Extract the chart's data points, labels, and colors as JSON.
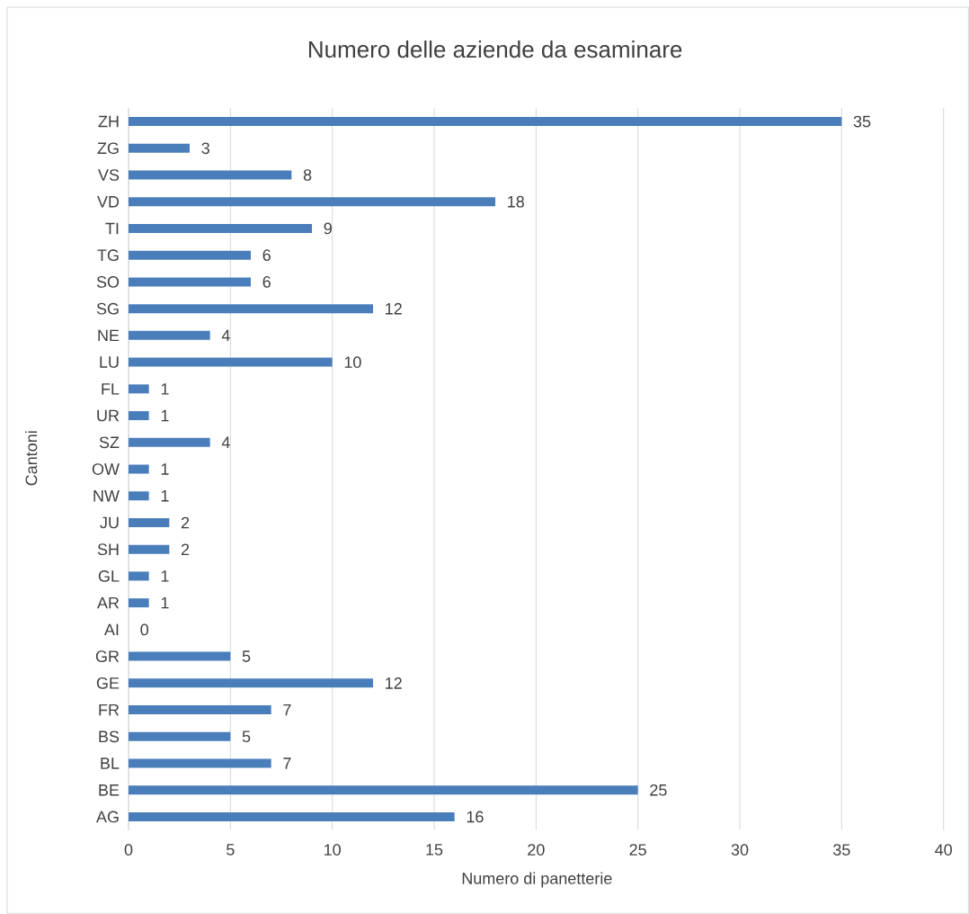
{
  "chart_data": {
    "type": "bar",
    "orientation": "horizontal",
    "title": "Numero delle aziende da esaminare",
    "xlabel": "Numero di panetterie",
    "ylabel": "Cantoni",
    "categories": [
      "ZH",
      "ZG",
      "VS",
      "VD",
      "TI",
      "TG",
      "SO",
      "SG",
      "NE",
      "LU",
      "FL",
      "UR",
      "SZ",
      "OW",
      "NW",
      "JU",
      "SH",
      "GL",
      "AR",
      "AI",
      "GR",
      "GE",
      "FR",
      "BS",
      "BL",
      "BE",
      "AG"
    ],
    "values": [
      35,
      3,
      8,
      18,
      9,
      6,
      6,
      12,
      4,
      10,
      1,
      1,
      4,
      1,
      1,
      2,
      2,
      1,
      1,
      0,
      5,
      12,
      7,
      5,
      7,
      25,
      16
    ],
    "color": "#4a7ebb",
    "xlim": [
      0,
      40
    ],
    "xticks": [
      0,
      5,
      10,
      15,
      20,
      25,
      30,
      35,
      40
    ],
    "grid": "x",
    "data_labels": true
  }
}
